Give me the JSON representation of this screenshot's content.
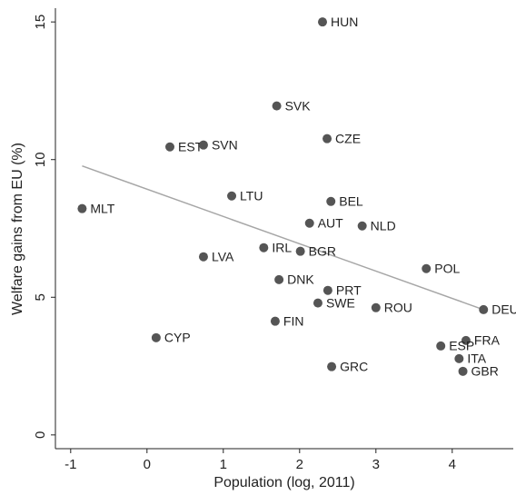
{
  "chart_data": {
    "type": "scatter",
    "x_label": "Population (log, 2011)",
    "y_label": "Welfare gains from EU (%)",
    "labels": [
      "HUN",
      "SVK",
      "CZE",
      "EST",
      "SVN",
      "MLT",
      "LTU",
      "BEL",
      "AUT",
      "NLD",
      "IRL",
      "BGR",
      "LVA",
      "POL",
      "DNK",
      "PRT",
      "SWE",
      "ROU",
      "DEU",
      "FIN",
      "CYP",
      "FRA",
      "ESP",
      "ITA",
      "GBR",
      "GRC"
    ],
    "x": [
      2.3,
      1.7,
      2.36,
      0.3,
      0.74,
      -0.85,
      1.11,
      2.41,
      2.13,
      2.82,
      1.53,
      2.01,
      0.74,
      3.66,
      1.73,
      2.37,
      2.24,
      3.0,
      4.41,
      1.68,
      0.12,
      4.18,
      3.85,
      4.09,
      4.14,
      2.42
    ],
    "y": [
      15.0,
      11.95,
      10.76,
      10.46,
      10.53,
      8.22,
      8.68,
      8.48,
      7.69,
      7.59,
      6.8,
      6.67,
      6.47,
      6.04,
      5.64,
      5.25,
      4.79,
      4.62,
      4.55,
      4.13,
      3.53,
      3.43,
      3.23,
      2.77,
      2.31,
      2.48
    ],
    "color": "#555555",
    "fit_line": {
      "x": [
        -0.85,
        4.41
      ],
      "y": [
        9.77,
        4.55
      ],
      "color": "#a6a6a6"
    },
    "xlim": [
      -1.2,
      4.8
    ],
    "ylim": [
      -0.5,
      15.5
    ],
    "xticks": [
      -1,
      0,
      1,
      2,
      3,
      4
    ],
    "yticks": [
      0,
      5,
      10,
      15
    ]
  }
}
